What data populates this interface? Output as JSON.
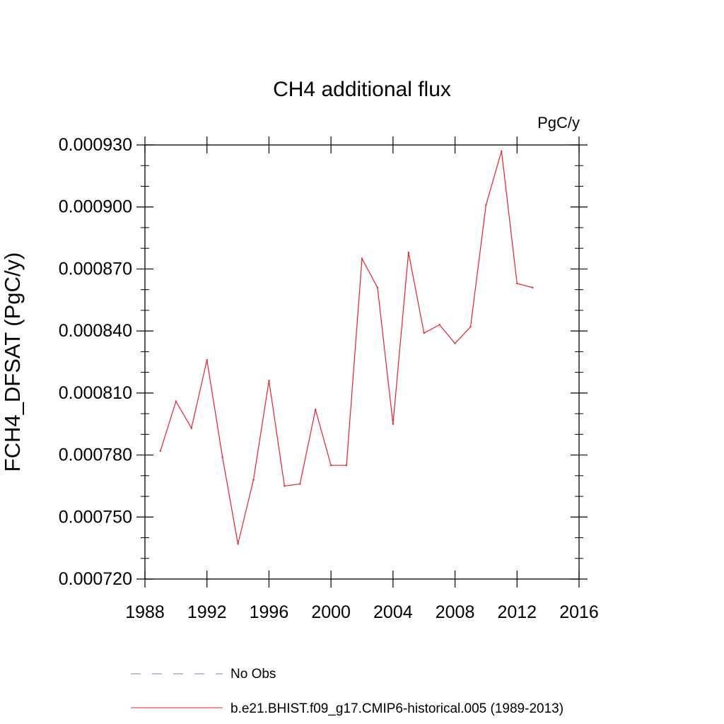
{
  "chart_data": {
    "type": "line",
    "title": "CH4 additional flux",
    "units_label": "PgC/y",
    "ylabel": "FCH4_DFSAT  (PgC/y)",
    "xlabel": "",
    "xlim": [
      1988,
      2016
    ],
    "ylim": [
      0.00072,
      0.00093
    ],
    "xticks": [
      1988,
      1992,
      1996,
      2000,
      2004,
      2008,
      2012,
      2016
    ],
    "xtick_labels": [
      "1988",
      "1992",
      "1996",
      "2000",
      "2004",
      "2008",
      "2012",
      "2016"
    ],
    "yticks": [
      0.00072,
      0.00075,
      0.00078,
      0.00081,
      0.00084,
      0.00087,
      0.0009,
      0.00093
    ],
    "ytick_labels": [
      "0.000720",
      "0.000750",
      "0.000780",
      "0.000810",
      "0.000840",
      "0.000870",
      "0.000900",
      "0.000930"
    ],
    "grid": false,
    "legend_position": "bottom",
    "series": [
      {
        "name": "No Obs",
        "style": "dashed",
        "color": "#7b7bc9",
        "x": [],
        "values": []
      },
      {
        "name": "b.e21.BHIST.f09_g17.CMIP6-historical.005 (1989-2013)",
        "style": "solid",
        "color": "#e8212b",
        "x": [
          1989,
          1990,
          1991,
          1992,
          1993,
          1994,
          1995,
          1996,
          1997,
          1998,
          1999,
          2000,
          2001,
          2002,
          2003,
          2004,
          2005,
          2006,
          2007,
          2008,
          2009,
          2010,
          2011,
          2012,
          2013
        ],
        "values": [
          0.000782,
          0.000806,
          0.000793,
          0.000826,
          0.000779,
          0.000737,
          0.000768,
          0.000816,
          0.000765,
          0.000766,
          0.000802,
          0.000775,
          0.000775,
          0.000875,
          0.000861,
          0.000795,
          0.000878,
          0.000839,
          0.000843,
          0.000834,
          0.000842,
          0.000901,
          0.000927,
          0.000863,
          0.000861
        ]
      }
    ]
  }
}
